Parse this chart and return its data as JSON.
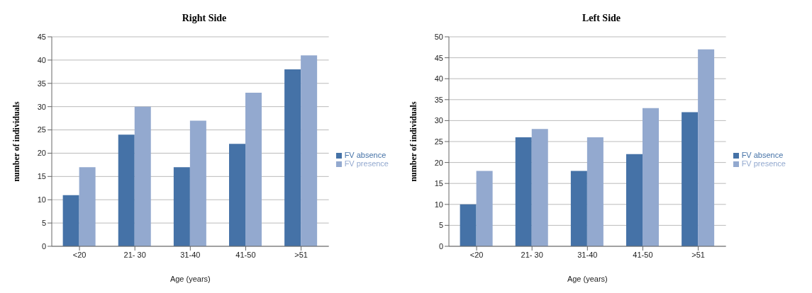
{
  "chart_data": [
    {
      "type": "bar",
      "title": "Right Side",
      "xlabel": "Age (years)",
      "ylabel": "number of individuals",
      "categories": [
        "<20",
        "21- 30",
        "31-40",
        "41-50",
        ">51"
      ],
      "series": [
        {
          "name": "FV absence",
          "color": "#4572a7",
          "values": [
            11,
            24,
            17,
            22,
            38
          ]
        },
        {
          "name": "FV presence",
          "color": "#93a9cf",
          "values": [
            17,
            30,
            27,
            33,
            41
          ]
        }
      ],
      "ylim": [
        0,
        45
      ],
      "yticks": [
        0,
        5,
        10,
        15,
        20,
        25,
        30,
        35,
        40,
        45
      ],
      "grid": "y",
      "legend": "right"
    },
    {
      "type": "bar",
      "title": "Left Side",
      "xlabel": "Age (years)",
      "ylabel": "number of individuals",
      "categories": [
        "<20",
        "21- 30",
        "31-40",
        "41-50",
        ">51"
      ],
      "series": [
        {
          "name": "FV absence",
          "color": "#4572a7",
          "values": [
            10,
            26,
            18,
            22,
            32
          ]
        },
        {
          "name": "FV presence",
          "color": "#93a9cf",
          "values": [
            18,
            28,
            26,
            33,
            47
          ]
        }
      ],
      "ylim": [
        0,
        50
      ],
      "yticks": [
        0,
        5,
        10,
        15,
        20,
        25,
        30,
        35,
        40,
        45,
        50
      ],
      "grid": "y",
      "legend": "right"
    }
  ]
}
